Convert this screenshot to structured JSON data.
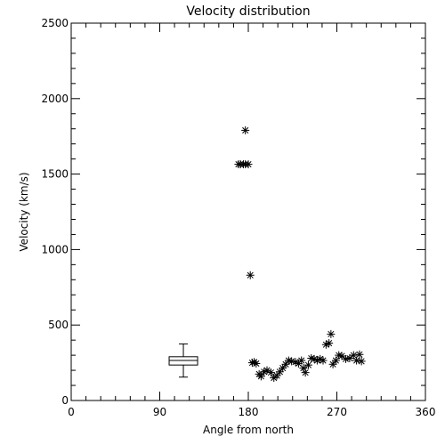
{
  "chart_data": {
    "type": "scatter",
    "title": "Velocity distribution",
    "xlabel": "Angle from north",
    "ylabel": "Velocity (km/s)",
    "xlim": [
      0,
      360
    ],
    "ylim": [
      0,
      2500
    ],
    "xticks": [
      0,
      90,
      180,
      270,
      360
    ],
    "yticks": [
      0,
      500,
      1000,
      1500,
      2000,
      2500
    ],
    "grid": false,
    "series": [
      {
        "marker": "asterisk",
        "points": [
          [
            170,
            1565
          ],
          [
            172,
            1565
          ],
          [
            175,
            1565
          ],
          [
            177,
            1565
          ],
          [
            180,
            1565
          ],
          [
            177,
            1790
          ],
          [
            182,
            830
          ],
          [
            184,
            250
          ],
          [
            186,
            255
          ],
          [
            188,
            245
          ],
          [
            191,
            175
          ],
          [
            193,
            160
          ],
          [
            196,
            190
          ],
          [
            199,
            200
          ],
          [
            203,
            185
          ],
          [
            206,
            150
          ],
          [
            209,
            165
          ],
          [
            212,
            190
          ],
          [
            215,
            215
          ],
          [
            218,
            240
          ],
          [
            221,
            265
          ],
          [
            224,
            260
          ],
          [
            228,
            255
          ],
          [
            231,
            245
          ],
          [
            234,
            265
          ],
          [
            236,
            215
          ],
          [
            238,
            185
          ],
          [
            241,
            235
          ],
          [
            244,
            280
          ],
          [
            247,
            275
          ],
          [
            250,
            265
          ],
          [
            253,
            275
          ],
          [
            256,
            265
          ],
          [
            259,
            370
          ],
          [
            262,
            380
          ],
          [
            264,
            440
          ],
          [
            266,
            240
          ],
          [
            269,
            265
          ],
          [
            272,
            300
          ],
          [
            275,
            295
          ],
          [
            279,
            275
          ],
          [
            283,
            280
          ],
          [
            287,
            300
          ],
          [
            290,
            265
          ],
          [
            293,
            305
          ],
          [
            295,
            260
          ]
        ]
      }
    ],
    "boxplot": {
      "x": 114,
      "min": 155,
      "q1": 235,
      "median": 265,
      "q3": 290,
      "max": 375
    }
  }
}
